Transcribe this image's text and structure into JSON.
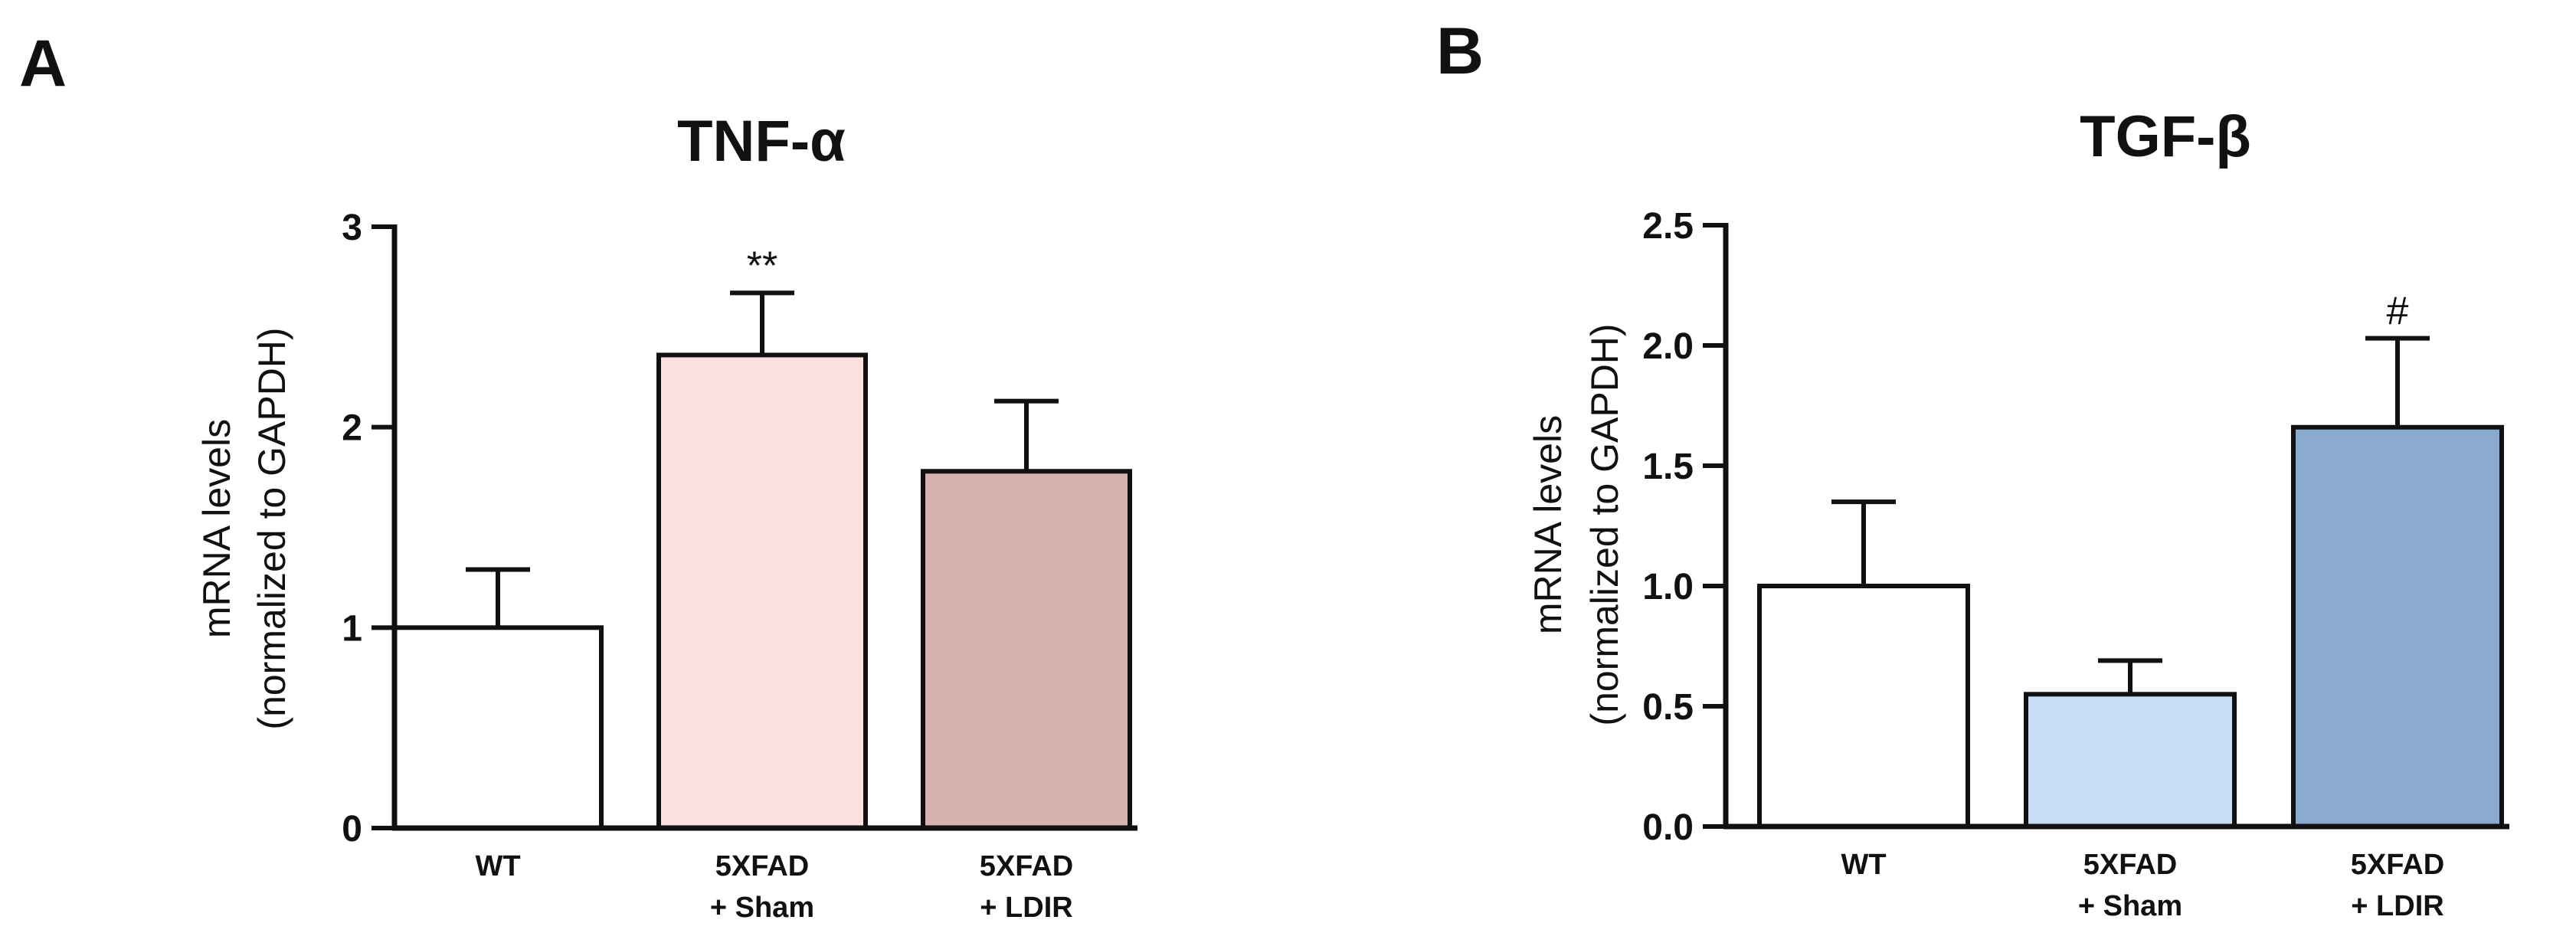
{
  "figure": {
    "panels": [
      {
        "letter": "A"
      },
      {
        "letter": "B"
      }
    ]
  },
  "chart_data": [
    {
      "type": "bar",
      "panel": "A",
      "title": "TNF-α",
      "xlabel": "",
      "ylabel": [
        "mRNA levels",
        "(normalized to GAPDH)"
      ],
      "categories": [
        [
          "WT"
        ],
        [
          "5XFAD",
          "+ Sham"
        ],
        [
          "5XFAD",
          "+ LDIR"
        ]
      ],
      "values": [
        1.0,
        2.36,
        1.78
      ],
      "errors": [
        0.29,
        0.31,
        0.35
      ],
      "colors": [
        "#ffffff",
        "#fde0e0",
        "#d7b0b0"
      ],
      "annotations": [
        "",
        "**",
        ""
      ],
      "ylim": [
        0,
        3
      ],
      "yticks": [
        "0",
        "1",
        "2",
        "3"
      ],
      "tick_values": [
        0,
        1,
        2,
        3
      ],
      "grid": false
    },
    {
      "type": "bar",
      "panel": "B",
      "title": "TGF-β",
      "xlabel": "",
      "ylabel": [
        "mRNA levels",
        "(normalized to GAPDH)"
      ],
      "categories": [
        [
          "WT"
        ],
        [
          "5XFAD",
          "+ Sham"
        ],
        [
          "5XFAD",
          "+ LDIR"
        ]
      ],
      "values": [
        1.0,
        0.55,
        1.66
      ],
      "errors": [
        0.35,
        0.14,
        0.37
      ],
      "colors": [
        "#ffffff",
        "#c9dcf5",
        "#8aaad0"
      ],
      "annotations": [
        "",
        "",
        "#"
      ],
      "ylim": [
        0,
        2.5
      ],
      "yticks": [
        "0.0",
        "0.5",
        "1.0",
        "1.5",
        "2.0",
        "2.5"
      ],
      "tick_values": [
        0,
        0.5,
        1.0,
        1.5,
        2.0,
        2.5
      ],
      "grid": false
    }
  ]
}
